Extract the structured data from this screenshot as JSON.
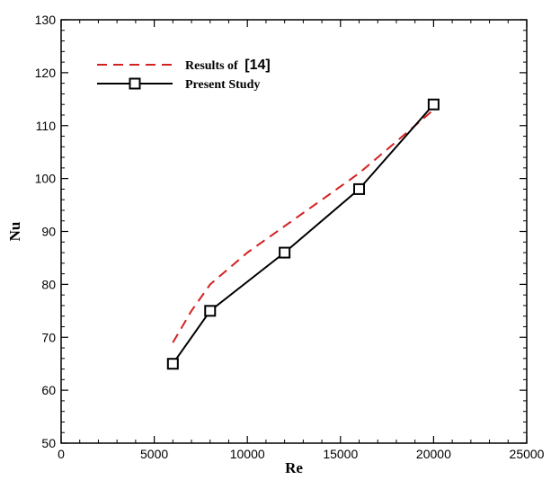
{
  "chart_data": {
    "type": "line",
    "title": "",
    "xlabel": "Re",
    "ylabel": "Nu",
    "xlim": [
      0,
      25000
    ],
    "ylim": [
      50,
      130
    ],
    "x_ticks": [
      0,
      5000,
      10000,
      15000,
      20000,
      25000
    ],
    "y_ticks": [
      50,
      60,
      70,
      80,
      90,
      100,
      110,
      120,
      130
    ],
    "x_tick_labels": [
      "0",
      "5000",
      "10000",
      "15000",
      "20000",
      "25000"
    ],
    "y_tick_labels": [
      "50",
      "60",
      "70",
      "80",
      "90",
      "100",
      "110",
      "120",
      "130"
    ],
    "grid": false,
    "legend_position": "top-left",
    "series": [
      {
        "name": "Results of",
        "name_suffix": "[14]",
        "style": "dashed",
        "marker": "none",
        "color": "#d42020",
        "x": [
          6000,
          7000,
          8000,
          10000,
          12000,
          14000,
          16000,
          18000,
          20000
        ],
        "y": [
          69,
          75,
          80,
          86,
          91,
          96,
          101,
          107,
          113
        ]
      },
      {
        "name": "Present Study",
        "style": "solid",
        "marker": "square",
        "color": "#000000",
        "x": [
          6000,
          8000,
          12000,
          16000,
          20000
        ],
        "y": [
          65,
          75,
          86,
          98,
          114
        ]
      }
    ]
  }
}
